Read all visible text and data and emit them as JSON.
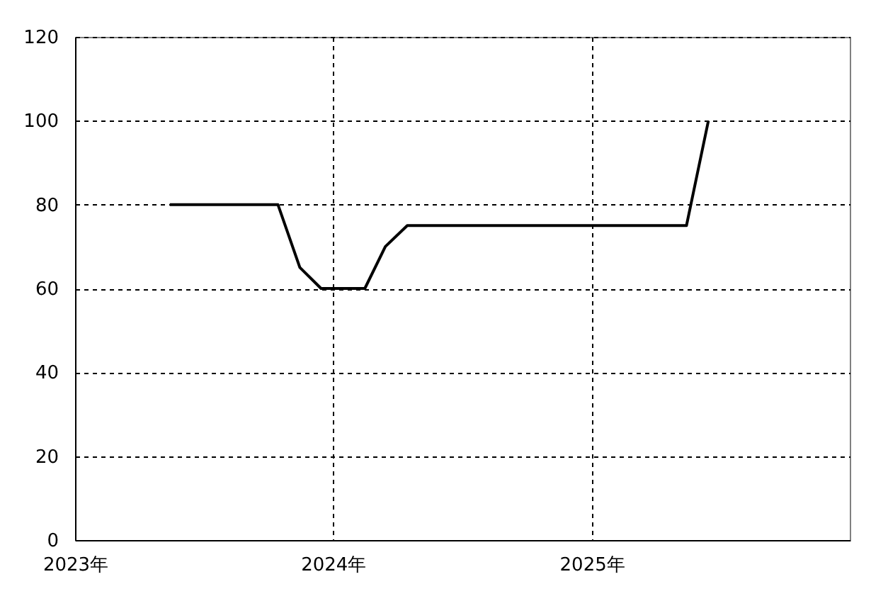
{
  "chart_data": {
    "type": "line",
    "x": [
      "2023-05-15",
      "2023-06-15",
      "2023-07-15",
      "2023-08-15",
      "2023-09-15",
      "2023-10-15",
      "2023-11-15",
      "2023-12-15",
      "2024-01-15",
      "2024-02-15",
      "2024-03-15",
      "2024-04-15",
      "2024-05-15",
      "2024-06-15",
      "2024-07-15",
      "2024-08-15",
      "2024-09-15",
      "2024-10-15",
      "2024-11-15",
      "2024-12-15",
      "2025-01-15",
      "2025-02-15",
      "2025-03-15",
      "2025-04-15",
      "2025-05-15",
      "2025-06-15"
    ],
    "series": [
      {
        "color": "#000000",
        "values": [
          80,
          80,
          80,
          80,
          80,
          80,
          65,
          60,
          60,
          60,
          70,
          75,
          75,
          75,
          75,
          75,
          75,
          75,
          75,
          75,
          75,
          75,
          75,
          75,
          75,
          100
        ]
      }
    ],
    "xlim": [
      "2023-01-01",
      "2026-01-01"
    ],
    "xticks": [
      {
        "value": "2023-01-01",
        "label": "2023年"
      },
      {
        "value": "2024-01-01",
        "label": "2024年"
      },
      {
        "value": "2025-01-01",
        "label": "2025年"
      }
    ],
    "ylim": [
      0,
      120
    ],
    "yticks": [
      0,
      20,
      40,
      60,
      80,
      100,
      120
    ],
    "grid": true,
    "marker": "none",
    "line_style": "solid"
  }
}
